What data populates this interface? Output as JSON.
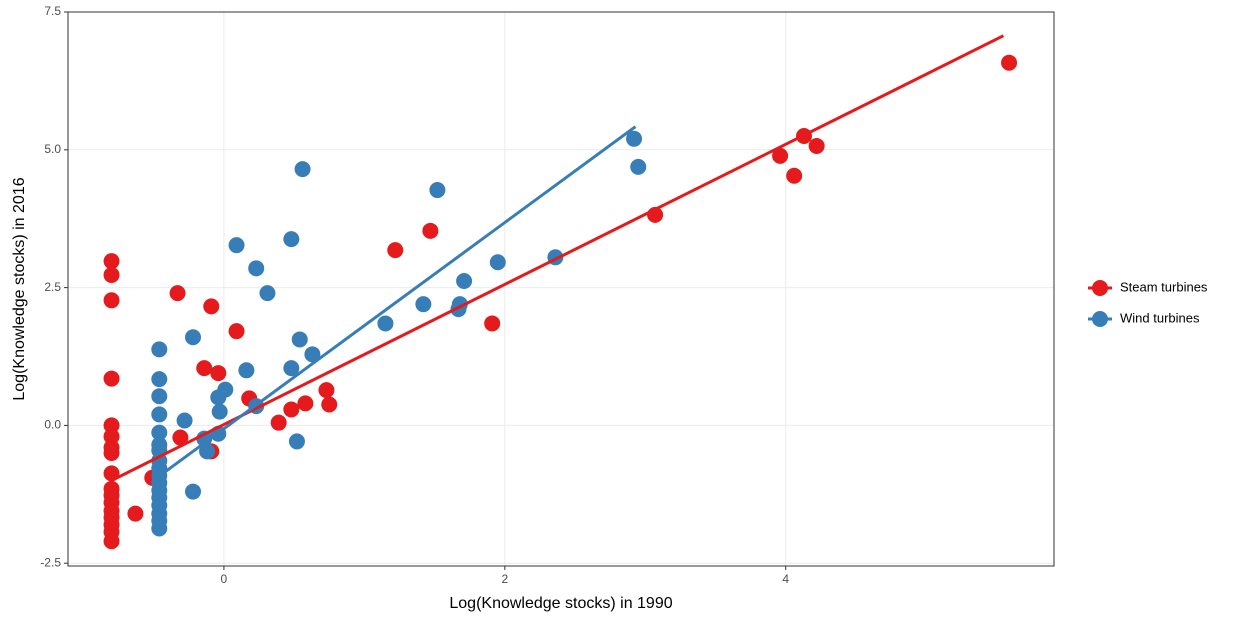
{
  "chart_data": {
    "type": "scatter",
    "xlabel": "Log(Knowledge stocks) in 1990",
    "ylabel": "Log(Knowledge stocks) in 2016",
    "xlim": [
      -1.11,
      5.91
    ],
    "ylim": [
      -2.55,
      7.5
    ],
    "xticks": [
      0,
      2,
      4
    ],
    "yticks": [
      {
        "value": -2.5,
        "label": "-2.5"
      },
      {
        "value": 0,
        "label": "0.0"
      },
      {
        "value": 2.5,
        "label": "2.5"
      },
      {
        "value": 5,
        "label": "5.0"
      },
      {
        "value": 7.5,
        "label": "7.5"
      }
    ],
    "grid": true,
    "legend": "right",
    "series": [
      {
        "name": "Steam turbines",
        "color": "#e41a1c",
        "x": [
          -0.8,
          -0.8,
          -0.8,
          -0.8,
          -0.8,
          -0.8,
          -0.8,
          -0.8,
          -0.8,
          -0.8,
          -0.8,
          -0.8,
          -0.8,
          -0.8,
          -0.8,
          -0.8,
          -0.8,
          -0.63,
          -0.51,
          -0.33,
          -0.31,
          -0.14,
          -0.09,
          -0.09,
          -0.04,
          0.09,
          0.18,
          0.39,
          0.48,
          0.58,
          0.73,
          0.75,
          1.22,
          1.47,
          1.91,
          3.07,
          3.96,
          4.06,
          4.13,
          4.22,
          5.59
        ],
        "values": [
          2.98,
          2.73,
          2.27,
          0.85,
          0,
          -0.2,
          -0.4,
          -0.5,
          -0.87,
          -1.15,
          -1.27,
          -1.4,
          -1.55,
          -1.67,
          -1.8,
          -1.93,
          -2.1,
          -1.6,
          -0.95,
          2.4,
          -0.22,
          1.04,
          2.16,
          -0.47,
          0.95,
          1.71,
          0.49,
          0.05,
          0.29,
          0.4,
          0.64,
          0.38,
          3.18,
          3.53,
          1.85,
          3.82,
          4.89,
          4.53,
          5.25,
          5.07,
          6.58
        ],
        "fit": {
          "x": [
            -0.8,
            5.55
          ],
          "y": [
            -1.0,
            7.07
          ]
        }
      },
      {
        "name": "Wind turbines",
        "color": "#377eb8",
        "x": [
          -0.46,
          -0.46,
          -0.46,
          -0.46,
          -0.46,
          -0.46,
          -0.46,
          -0.46,
          -0.46,
          -0.46,
          -0.46,
          -0.46,
          -0.46,
          -0.46,
          -0.46,
          -0.46,
          -0.46,
          -0.28,
          -0.22,
          -0.22,
          -0.14,
          -0.12,
          -0.04,
          -0.04,
          -0.03,
          0.01,
          0.09,
          0.16,
          0.23,
          0.23,
          0.31,
          0.48,
          0.48,
          0.52,
          0.54,
          0.56,
          0.63,
          1.15,
          1.42,
          1.52,
          1.67,
          1.68,
          1.71,
          1.95,
          2.36,
          2.92,
          2.95
        ],
        "values": [
          1.38,
          0.84,
          0.53,
          0.2,
          -0.13,
          -0.35,
          -0.45,
          -0.64,
          -0.78,
          -0.91,
          -1.04,
          -1.18,
          -1.31,
          -1.45,
          -1.6,
          -1.73,
          -1.87,
          0.09,
          1.6,
          -1.2,
          -0.24,
          -0.47,
          0.51,
          -0.15,
          0.25,
          0.65,
          3.27,
          1.0,
          0.35,
          2.85,
          2.4,
          3.38,
          1.04,
          -0.29,
          1.56,
          4.65,
          1.29,
          1.85,
          2.2,
          4.27,
          2.11,
          2.2,
          2.62,
          2.96,
          3.05,
          5.2,
          4.69
        ],
        "fit": {
          "x": [
            -0.45,
            2.93
          ],
          "y": [
            -0.9,
            5.42
          ]
        }
      }
    ]
  }
}
